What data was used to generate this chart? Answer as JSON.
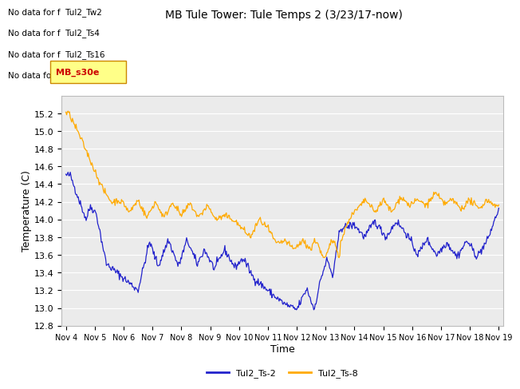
{
  "title": "MB Tule Tower: Tule Temps 2 (3/23/17-now)",
  "xlabel": "Time",
  "ylabel": "Temperature (C)",
  "ylim": [
    12.8,
    15.4
  ],
  "yticks": [
    12.8,
    13.0,
    13.2,
    13.4,
    13.6,
    13.8,
    14.0,
    14.2,
    14.4,
    14.6,
    14.8,
    15.0,
    15.2
  ],
  "xtick_labels": [
    "Nov 4",
    "Nov 5",
    "Nov 6",
    "Nov 7",
    "Nov 8",
    "Nov 9",
    "Nov 10",
    "Nov 11",
    "Nov 12",
    "Nov 13",
    "Nov 14",
    "Nov 15",
    "Nov 16",
    "Nov 17",
    "Nov 18",
    "Nov 19"
  ],
  "legend_labels": [
    "Tul2_Ts-2",
    "Tul2_Ts-8"
  ],
  "legend_colors": [
    "#2222cc",
    "#ffaa00"
  ],
  "no_data_texts": [
    "No data for f  Tul2_Tw2",
    "No data for f  Tul2_Ts4",
    "No data for f  Tul2_Ts16",
    "No data for f  Tul2_Ts32"
  ],
  "tooltip_text": "MB_s30e",
  "plot_bg_color": "#ebebeb",
  "grid_color": "#ffffff",
  "line_color_blue": "#2222cc",
  "line_color_orange": "#ffaa00",
  "title_fontsize": 10,
  "axis_label_fontsize": 9,
  "tick_fontsize": 8,
  "nodata_fontsize": 7.5
}
